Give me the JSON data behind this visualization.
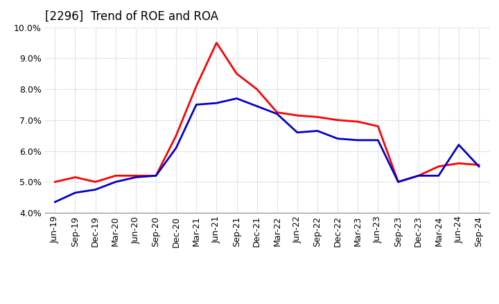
{
  "title": "[2296]  Trend of ROE and ROA",
  "x_labels": [
    "Jun-19",
    "Sep-19",
    "Dec-19",
    "Mar-20",
    "Jun-20",
    "Sep-20",
    "Dec-20",
    "Mar-21",
    "Jun-21",
    "Sep-21",
    "Dec-21",
    "Mar-22",
    "Jun-22",
    "Sep-22",
    "Dec-22",
    "Mar-23",
    "Jun-23",
    "Sep-23",
    "Dec-23",
    "Mar-24",
    "Jun-24",
    "Sep-24"
  ],
  "ROE": [
    5.0,
    5.15,
    5.0,
    5.2,
    5.2,
    5.2,
    6.5,
    8.1,
    9.5,
    8.5,
    8.0,
    7.25,
    7.15,
    7.1,
    7.0,
    6.95,
    6.8,
    5.0,
    5.2,
    5.5,
    5.6,
    5.55
  ],
  "ROA": [
    4.35,
    4.65,
    4.75,
    5.0,
    5.15,
    5.2,
    6.1,
    7.5,
    7.55,
    7.7,
    7.45,
    7.2,
    6.6,
    6.65,
    6.4,
    6.35,
    6.35,
    5.0,
    5.2,
    5.2,
    6.2,
    5.5
  ],
  "roe_color": "#ff0000",
  "roa_color": "#0000cc",
  "ylim": [
    4.0,
    10.0
  ],
  "yticks": [
    4.0,
    5.0,
    6.0,
    7.0,
    8.0,
    9.0,
    10.0
  ],
  "line_width": 2.0,
  "bg_color": "#ffffff",
  "plot_bg_color": "#ffffff",
  "grid_color": "#b0b8c8",
  "title_fontsize": 12,
  "tick_fontsize": 9,
  "legend_fontsize": 10
}
